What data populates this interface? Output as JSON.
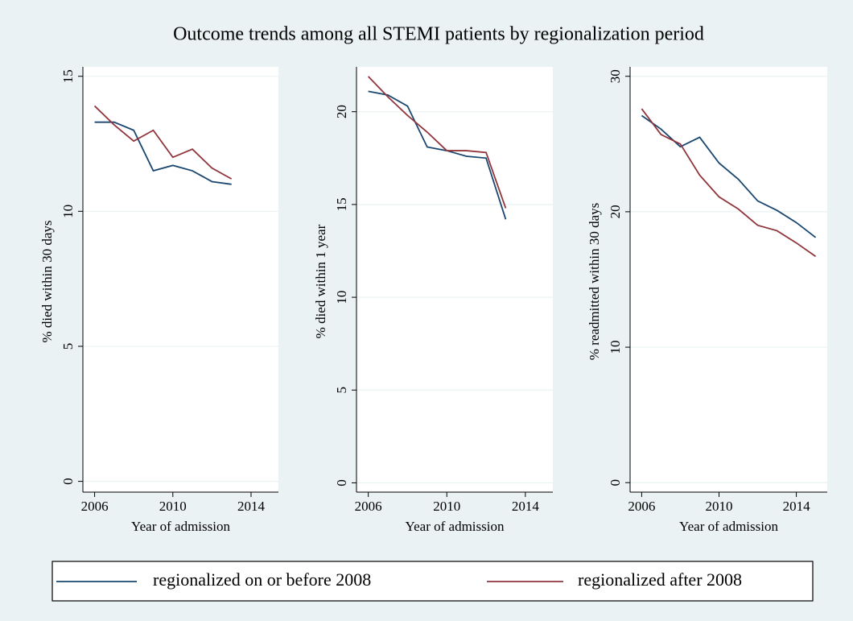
{
  "title": "Outcome trends among all STEMI patients by regionalization period",
  "chart_data": [
    {
      "type": "line",
      "xlabel": "Year of admission",
      "ylabel": "% died within 30 days",
      "x": [
        2006,
        2007,
        2008,
        2009,
        2010,
        2011,
        2012,
        2013
      ],
      "xlim": [
        2005.4,
        2015.4
      ],
      "xticks": [
        2006,
        2010,
        2014
      ],
      "ylim": [
        -0.4,
        15.2
      ],
      "yticks": [
        0,
        5,
        10,
        15
      ],
      "grid": true,
      "series": [
        {
          "name": "regionalized on or before 2008",
          "color": "#1a476f",
          "values": [
            13.3,
            13.3,
            13.0,
            11.5,
            11.7,
            11.5,
            11.1,
            11.0
          ]
        },
        {
          "name": "regionalized after 2008",
          "color": "#90353b",
          "values": [
            13.9,
            13.2,
            12.6,
            13.0,
            12.0,
            12.3,
            11.6,
            11.2
          ]
        }
      ]
    },
    {
      "type": "line",
      "xlabel": "Year of admission",
      "ylabel": "% died within 1 year",
      "x": [
        2006,
        2007,
        2008,
        2009,
        2010,
        2011,
        2012,
        2013
      ],
      "xlim": [
        2005.4,
        2015.4
      ],
      "xticks": [
        2006,
        2010,
        2014
      ],
      "ylim": [
        -0.5,
        22.2
      ],
      "yticks": [
        0,
        5,
        10,
        15,
        20
      ],
      "grid": true,
      "series": [
        {
          "color": "#1a476f",
          "values": [
            21.1,
            20.9,
            20.3,
            18.1,
            17.9,
            17.6,
            17.5,
            14.2
          ]
        },
        {
          "color": "#90353b",
          "values": [
            21.9,
            20.8,
            19.8,
            18.9,
            17.9,
            17.9,
            17.8,
            14.8
          ]
        }
      ]
    },
    {
      "type": "line",
      "xlabel": "Year of admission",
      "ylabel": "% readmitted within 30 days",
      "x": [
        2006,
        2007,
        2008,
        2009,
        2010,
        2011,
        2012,
        2013,
        2014,
        2015
      ],
      "xlim": [
        2005.4,
        2015.6
      ],
      "xticks": [
        2006,
        2010,
        2014
      ],
      "ylim": [
        -0.7,
        30.4
      ],
      "yticks": [
        0,
        10,
        20,
        30
      ],
      "grid": true,
      "series": [
        {
          "color": "#1a476f",
          "values": [
            27.1,
            26.1,
            24.8,
            25.5,
            23.6,
            22.4,
            20.8,
            20.1,
            19.2,
            18.1
          ]
        },
        {
          "color": "#90353b",
          "values": [
            27.6,
            25.7,
            25.0,
            22.7,
            21.1,
            20.2,
            19.0,
            18.6,
            17.7,
            16.7
          ]
        }
      ]
    }
  ]
}
